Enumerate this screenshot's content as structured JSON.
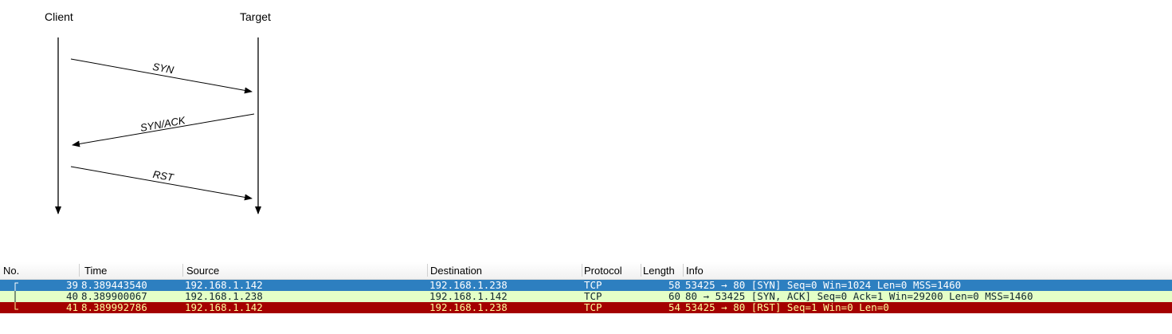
{
  "diagram": {
    "client_label": "Client",
    "target_label": "Target",
    "messages": [
      {
        "label": "SYN",
        "direction": "client-to-target"
      },
      {
        "label": "SYN/ACK",
        "direction": "target-to-client"
      },
      {
        "label": "RST",
        "direction": "client-to-target"
      }
    ]
  },
  "packet_list": {
    "columns": [
      "No.",
      "Time",
      "Source",
      "Destination",
      "Protocol",
      "Length",
      "Info"
    ],
    "rows": [
      {
        "no": "39",
        "time": "8.389443540",
        "source": "192.168.1.142",
        "destination": "192.168.1.238",
        "protocol": "TCP",
        "length": "58",
        "info": "53425 → 80 [SYN] Seq=0 Win=1024 Len=0 MSS=1460",
        "state": "selected",
        "bg": "#2d7fc0",
        "fg": "#ffffff"
      },
      {
        "no": "40",
        "time": "8.389900067",
        "source": "192.168.1.238",
        "destination": "192.168.1.142",
        "protocol": "TCP",
        "length": "60",
        "info": "80 → 53425 [SYN, ACK] Seq=0 Ack=1 Win=29200 Len=0 MSS=1460",
        "state": "normal",
        "bg": "#e4ffc7",
        "fg": "#12272e"
      },
      {
        "no": "41",
        "time": "8.389992786",
        "source": "192.168.1.142",
        "destination": "192.168.1.238",
        "protocol": "TCP",
        "length": "54",
        "info": "53425 → 80 [RST] Seq=1 Win=0 Len=0",
        "state": "rst",
        "bg": "#a40000",
        "fg": "#fffc9c"
      }
    ]
  }
}
